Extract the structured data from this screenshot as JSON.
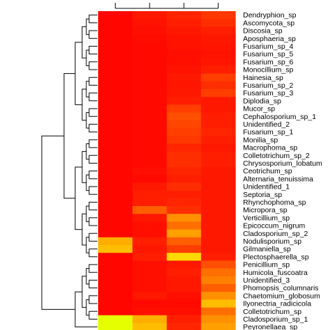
{
  "chart_data": {
    "type": "heatmap",
    "title": "",
    "rows": [
      "Dendryphion_sp",
      "Ascomycota_sp",
      "Discosia_sp",
      "Aposphaeria_sp",
      "Fusarium_sp_4",
      "Fusarium_sp_5",
      "Fusarium_sp_6",
      "Monocillium_sp",
      "Hainesia_sp",
      "Fusarium_sp_2",
      "Fusarium_sp_3",
      "Diplodia_sp",
      "Mucor_sp",
      "Cephalosporium_sp_1",
      "Unidentified_2",
      "Fusarium_sp_1",
      "Monilia_sp",
      "Macrophoma_sp",
      "Colletotrichum_sp_2",
      "Chrysosporium_lobatum",
      "Ceotrichum_sp",
      "Alternaria_tenuissima",
      "Unidentified_1",
      "Septoria_sp",
      "Rhynchophoma_sp",
      "Micropora_sp",
      "Verticillium_sp",
      "Epicoccum_nigrum",
      "Cladosporium_sp_2",
      "Nodulisporium_sp",
      "Gilmaniella_sp",
      "Plectosphaerella_sp",
      "Penicillium_sp",
      "Humicola_fuscoatra",
      "Unidentified_3",
      "Phomopsis_columnaris",
      "Chaetomium_globosum",
      "Ilyonectria_radicicola",
      "Colletotrichum_sp",
      "Cladosporium_sp_1",
      "Peyronellaea_sp"
    ],
    "columns": 4,
    "color_scale": [
      "#ff0000",
      "#ff3300",
      "#ff6a00",
      "#ffa000",
      "#ffd000",
      "#f0ff00",
      "#80ff00"
    ],
    "values": [
      [
        0.02,
        0.08,
        0.12,
        0.18
      ],
      [
        0.02,
        0.06,
        0.1,
        0.15
      ],
      [
        0.02,
        0.05,
        0.08,
        0.1
      ],
      [
        0.02,
        0.04,
        0.06,
        0.08
      ],
      [
        0.02,
        0.03,
        0.06,
        0.07
      ],
      [
        0.02,
        0.03,
        0.05,
        0.06
      ],
      [
        0.02,
        0.03,
        0.05,
        0.07
      ],
      [
        0.02,
        0.03,
        0.06,
        0.1
      ],
      [
        0.02,
        0.03,
        0.08,
        0.2
      ],
      [
        0.02,
        0.03,
        0.07,
        0.15
      ],
      [
        0.02,
        0.03,
        0.08,
        0.2
      ],
      [
        0.02,
        0.03,
        0.1,
        0.08
      ],
      [
        0.02,
        0.03,
        0.2,
        0.08
      ],
      [
        0.02,
        0.03,
        0.25,
        0.1
      ],
      [
        0.02,
        0.03,
        0.22,
        0.1
      ],
      [
        0.02,
        0.03,
        0.2,
        0.12
      ],
      [
        0.02,
        0.03,
        0.18,
        0.1
      ],
      [
        0.02,
        0.03,
        0.12,
        0.08
      ],
      [
        0.02,
        0.03,
        0.15,
        0.1
      ],
      [
        0.02,
        0.03,
        0.15,
        0.1
      ],
      [
        0.02,
        0.05,
        0.12,
        0.08
      ],
      [
        0.02,
        0.03,
        0.1,
        0.08
      ],
      [
        0.02,
        0.08,
        0.15,
        0.08
      ],
      [
        0.02,
        0.1,
        0.1,
        0.08
      ],
      [
        0.02,
        0.1,
        0.12,
        0.08
      ],
      [
        0.02,
        0.3,
        0.15,
        0.08
      ],
      [
        0.02,
        0.08,
        0.45,
        0.08
      ],
      [
        0.02,
        0.05,
        0.35,
        0.08
      ],
      [
        0.02,
        0.05,
        0.5,
        0.08
      ],
      [
        0.55,
        0.1,
        0.3,
        0.08
      ],
      [
        0.6,
        0.08,
        0.2,
        0.08
      ],
      [
        0.02,
        0.1,
        0.7,
        0.1
      ],
      [
        0.02,
        0.05,
        0.08,
        0.25
      ],
      [
        0.02,
        0.05,
        0.1,
        0.35
      ],
      [
        0.02,
        0.05,
        0.08,
        0.4
      ],
      [
        0.02,
        0.05,
        0.08,
        0.3
      ],
      [
        0.02,
        0.08,
        0.05,
        0.45
      ],
      [
        0.02,
        0.03,
        0.03,
        0.6
      ],
      [
        0.02,
        0.05,
        0.05,
        0.35
      ],
      [
        0.85,
        0.55,
        0.1,
        0.45
      ],
      [
        0.85,
        0.6,
        0.12,
        0.5
      ]
    ]
  }
}
